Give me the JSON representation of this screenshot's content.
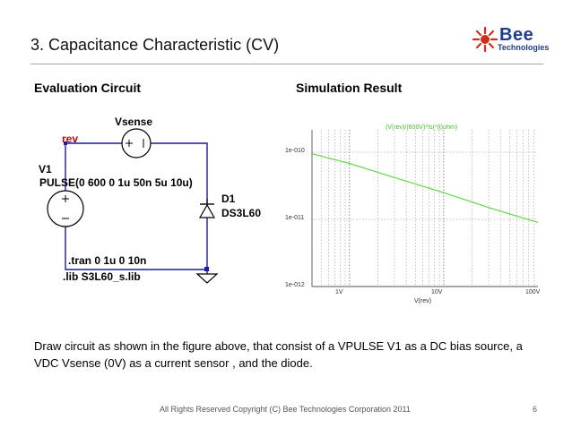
{
  "slide": {
    "title": "3. Capacitance Characteristic (CV)",
    "page_number": "6",
    "footer": "All Rights Reserved Copyright (C) Bee Technologies Corporation 2011"
  },
  "logo": {
    "name": "Bee",
    "subtitle": "Technologies"
  },
  "sections": {
    "left_heading": "Evaluation Circuit",
    "right_heading": "Simulation Result"
  },
  "circuit": {
    "vsense_label": "Vsense",
    "rev_label": "rev",
    "v1_label": "V1",
    "pulse_label": "PULSE(0 600 0 1u 50n 5u 10u)",
    "d1_label": "D1",
    "diode_model": "DS3L60",
    "tran_cmd": ".tran 0 1u 0 10n",
    "lib_cmd": ".lib S3L60_s.lib"
  },
  "chart_data": {
    "type": "line",
    "title": "",
    "legend": "(V(rev)/(600V)*Is(*(t)ohm)",
    "x_axis": {
      "label": "V(rev)",
      "scale": "log",
      "range": [
        0.4,
        100
      ],
      "ticks": [
        "1V",
        "10V",
        "100V"
      ]
    },
    "y_axis": {
      "label": "",
      "scale": "log",
      "range": [
        1e-12,
        1e-10
      ],
      "ticks": [
        "1e-010",
        "1e-011",
        "1e-012"
      ]
    },
    "grid": true,
    "line_color": "#5ed93f",
    "series": [
      {
        "name": "",
        "x": [
          0.4,
          1,
          3,
          10,
          30,
          100
        ],
        "y": [
          9.5e-11,
          6.8e-11,
          4.2e-11,
          2.5e-11,
          1.5e-11,
          9e-12
        ]
      }
    ]
  },
  "description": "Draw circuit as shown in the figure above, that consist of a VPULSE V1 as a DC bias source, a VDC Vsense (0V) as a current sensor , and the diode.",
  "colors": {
    "wire": "#1a1aa8",
    "rev_label": "#cc0000",
    "logo_blue": "#1e3d8f",
    "logo_red": "#d62a1e"
  }
}
